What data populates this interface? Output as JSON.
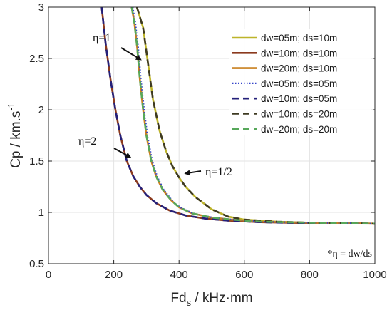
{
  "chart_data": {
    "type": "line",
    "xlabel_main": "Fd",
    "xlabel_sub": "s",
    "xlabel_rest": " / kHz·mm",
    "ylabel_main": "Cp / km.s",
    "ylabel_sup": "-1",
    "xlim": [
      0,
      1000
    ],
    "ylim": [
      0.5,
      3
    ],
    "xticks": [
      "0",
      "200",
      "400",
      "600",
      "800",
      "1000"
    ],
    "yticks": [
      "0.5",
      "1",
      "1.5",
      "2",
      "2.5",
      "3"
    ],
    "grid": true,
    "legend_position": "top-right",
    "series": [
      {
        "name": "dw=05m; ds=10m",
        "color": "#bdb42a",
        "style": "solid",
        "x": [
          271,
          290,
          305,
          320,
          340,
          360,
          380,
          400,
          420,
          450,
          500,
          550,
          600,
          700,
          800,
          900,
          1000
        ],
        "y": [
          3.0,
          2.8,
          2.45,
          2.1,
          1.8,
          1.6,
          1.45,
          1.34,
          1.25,
          1.15,
          1.03,
          0.96,
          0.93,
          0.91,
          0.9,
          0.895,
          0.89
        ]
      },
      {
        "name": "dw=10m; ds=10m",
        "color": "#8b3a1e",
        "style": "solid",
        "x": [
          163,
          175,
          190,
          205,
          220,
          240,
          260,
          280,
          300,
          330,
          370,
          420,
          480,
          550,
          650,
          800,
          1000
        ],
        "y": [
          3.0,
          2.65,
          2.3,
          2.0,
          1.75,
          1.5,
          1.35,
          1.25,
          1.17,
          1.09,
          1.02,
          0.97,
          0.94,
          0.92,
          0.905,
          0.895,
          0.89
        ]
      },
      {
        "name": "dw=20m; ds=10m",
        "color": "#c9811f",
        "style": "solid",
        "x": [
          255,
          263,
          272,
          280,
          290,
          300,
          315,
          330,
          350,
          375,
          400,
          440,
          500,
          560,
          650,
          800,
          1000
        ],
        "y": [
          3.0,
          2.85,
          2.6,
          2.3,
          2.0,
          1.75,
          1.5,
          1.35,
          1.22,
          1.12,
          1.05,
          0.99,
          0.95,
          0.93,
          0.91,
          0.9,
          0.89
        ]
      },
      {
        "name": "dw=05m; ds=05m",
        "color": "#3545c9",
        "style": "dotted",
        "x": [
          258,
          266,
          275,
          283,
          293,
          303,
          318,
          333,
          353,
          378,
          403,
          443,
          503,
          563,
          653,
          800,
          1000
        ],
        "y": [
          3.0,
          2.85,
          2.6,
          2.3,
          2.0,
          1.75,
          1.5,
          1.35,
          1.22,
          1.12,
          1.05,
          0.99,
          0.95,
          0.93,
          0.91,
          0.9,
          0.89
        ]
      },
      {
        "name": "dw=10m; ds=05m",
        "color": "#24207a",
        "style": "dashed",
        "x": [
          163,
          175,
          190,
          205,
          220,
          240,
          260,
          280,
          300,
          330,
          370,
          420,
          480,
          550,
          650,
          800,
          1000
        ],
        "y": [
          3.0,
          2.65,
          2.3,
          2.0,
          1.75,
          1.5,
          1.35,
          1.25,
          1.17,
          1.09,
          1.02,
          0.97,
          0.94,
          0.92,
          0.905,
          0.895,
          0.89
        ]
      },
      {
        "name": "dw=10m; ds=20m",
        "color": "#3e3a22",
        "style": "dashed",
        "x": [
          271,
          290,
          305,
          320,
          340,
          360,
          380,
          400,
          420,
          450,
          500,
          550,
          600,
          700,
          800,
          900,
          1000
        ],
        "y": [
          3.0,
          2.8,
          2.45,
          2.1,
          1.8,
          1.6,
          1.45,
          1.34,
          1.25,
          1.15,
          1.03,
          0.96,
          0.93,
          0.91,
          0.9,
          0.895,
          0.89
        ]
      },
      {
        "name": "dw=20m; ds=20m",
        "color": "#57a85a",
        "style": "dashed",
        "x": [
          255,
          263,
          272,
          280,
          290,
          300,
          315,
          330,
          350,
          375,
          400,
          440,
          500,
          560,
          650,
          800,
          1000
        ],
        "y": [
          3.0,
          2.85,
          2.6,
          2.3,
          2.0,
          1.75,
          1.5,
          1.35,
          1.22,
          1.12,
          1.05,
          0.99,
          0.95,
          0.93,
          0.91,
          0.9,
          0.89
        ]
      }
    ],
    "annotations": [
      {
        "text": "η=1",
        "arrow_to": [
          282,
          2.49
        ]
      },
      {
        "text": "η=2",
        "arrow_to": [
          250,
          1.54
        ]
      },
      {
        "text": "η=1/2",
        "arrow_to": [
          420,
          1.38
        ]
      }
    ],
    "note": "*η = dw/ds"
  }
}
